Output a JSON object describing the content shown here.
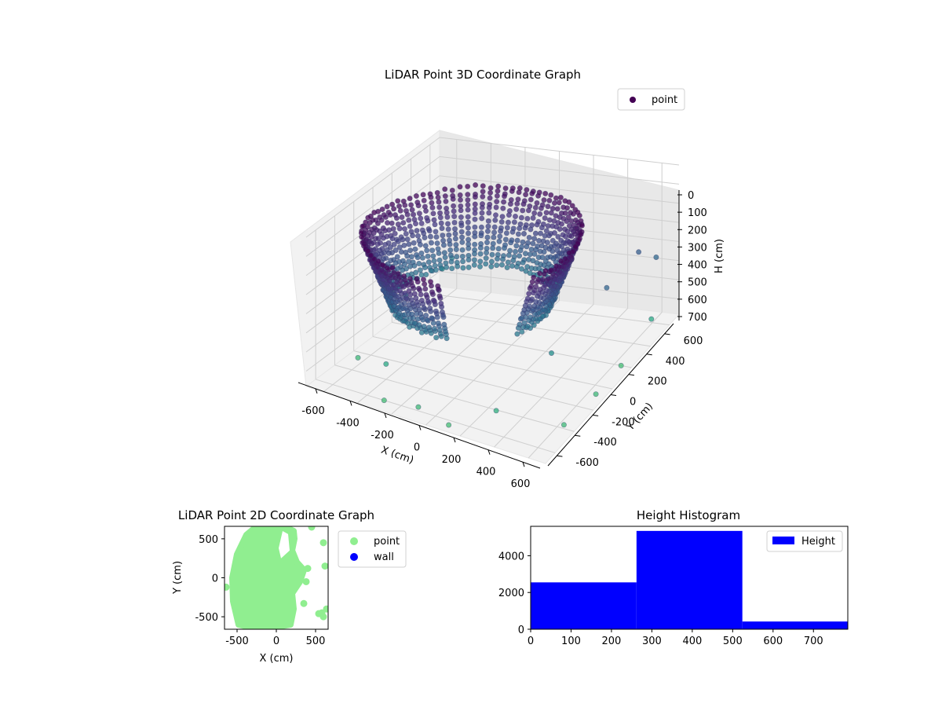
{
  "chart_data": [
    {
      "type": "scatter",
      "projection": "3d",
      "title": "LiDAR Point 3D Coordinate Graph",
      "xlabel": "X (cm)",
      "ylabel": "Y (cm)",
      "zlabel": "H (cm)",
      "xlim": [
        -700,
        700
      ],
      "ylim": [
        -700,
        700
      ],
      "zlim": [
        780,
        0
      ],
      "x_ticks": [
        -600,
        -400,
        -200,
        0,
        200,
        400,
        600
      ],
      "y_ticks": [
        -600,
        -400,
        -200,
        0,
        200,
        400,
        600
      ],
      "z_ticks": [
        0,
        100,
        200,
        300,
        400,
        500,
        600,
        700
      ],
      "z_inverted": true,
      "grid": true,
      "legend": {
        "placement": "top-right",
        "entries": [
          {
            "name": "point",
            "color": "#440154"
          }
        ]
      },
      "colormap": "viridis",
      "series": [
        {
          "name": "point",
          "description_shape": "dense bowl of points, radius ~600 cm around origin, heights ~150-500 cm, plus sparse outliers",
          "ring_radius_cm": 600,
          "height_range_cm": [
            150,
            500
          ],
          "sample_points": [
            {
              "x": -640,
              "y": 620,
              "h": 650
            },
            {
              "x": -550,
              "y": 560,
              "h": 560
            },
            {
              "x": -520,
              "y": 300,
              "h": 520
            },
            {
              "x": -480,
              "y": -50,
              "h": 500
            },
            {
              "x": -620,
              "y": -300,
              "h": 760
            },
            {
              "x": -400,
              "y": -400,
              "h": 700
            },
            {
              "x": -300,
              "y": -600,
              "h": 780
            },
            {
              "x": -100,
              "y": -600,
              "h": 760
            },
            {
              "x": 100,
              "y": -640,
              "h": 780
            },
            {
              "x": 300,
              "y": -500,
              "h": 720
            },
            {
              "x": 400,
              "y": -100,
              "h": 600
            },
            {
              "x": 500,
              "y": 300,
              "h": 450
            },
            {
              "x": 520,
              "y": 600,
              "h": 420
            },
            {
              "x": 600,
              "y": 640,
              "h": 460
            },
            {
              "x": 650,
              "y": 500,
              "h": 700
            },
            {
              "x": 640,
              "y": 200,
              "h": 780
            },
            {
              "x": 660,
              "y": -100,
              "h": 760
            },
            {
              "x": 640,
              "y": -400,
              "h": 760
            }
          ]
        }
      ]
    },
    {
      "type": "scatter",
      "title": "LiDAR Point 2D Coordinate Graph",
      "xlabel": "X (cm)",
      "ylabel": "Y (cm)",
      "xlim": [
        -660,
        660
      ],
      "ylim": [
        -660,
        660
      ],
      "x_ticks": [
        -500,
        0,
        500
      ],
      "y_ticks": [
        -500,
        0,
        500
      ],
      "legend": {
        "placement": "outside-right",
        "entries": [
          {
            "name": "point",
            "color": "#90ee90"
          },
          {
            "name": "wall",
            "color": "#0000ff"
          }
        ]
      },
      "series": [
        {
          "name": "point",
          "color": "#90ee90",
          "outline": [
            [
              -480,
              -600
            ],
            [
              -550,
              -300
            ],
            [
              -560,
              0
            ],
            [
              -500,
              300
            ],
            [
              -380,
              550
            ],
            [
              -250,
              660
            ],
            [
              100,
              660
            ],
            [
              220,
              600
            ],
            [
              230,
              500
            ],
            [
              200,
              350
            ],
            [
              260,
              200
            ],
            [
              350,
              100
            ],
            [
              300,
              -50
            ],
            [
              200,
              -200
            ],
            [
              220,
              -400
            ],
            [
              180,
              -600
            ],
            [
              -50,
              -640
            ],
            [
              -300,
              -640
            ]
          ],
          "scattered": [
            {
              "x": 450,
              "y": 650
            },
            {
              "x": 600,
              "y": 450
            },
            {
              "x": 620,
              "y": 150
            },
            {
              "x": 540,
              "y": -460
            },
            {
              "x": 600,
              "y": -500
            },
            {
              "x": 640,
              "y": -400
            },
            {
              "x": 580,
              "y": -450
            },
            {
              "x": -640,
              "y": -120
            },
            {
              "x": 350,
              "y": -330
            },
            {
              "x": 400,
              "y": 120
            },
            {
              "x": 380,
              "y": -50
            }
          ]
        },
        {
          "name": "wall",
          "color": "#0000ff",
          "points": []
        }
      ]
    },
    {
      "type": "bar",
      "title": "Height Histogram",
      "xlim": [
        0,
        785
      ],
      "ylim": [
        0,
        5600
      ],
      "x_ticks": [
        0,
        100,
        200,
        300,
        400,
        500,
        600,
        700
      ],
      "y_ticks": [
        0,
        2000,
        4000
      ],
      "legend": {
        "placement": "top-right",
        "entries": [
          {
            "name": "Height",
            "color": "#0000ff"
          }
        ]
      },
      "series": [
        {
          "name": "Height",
          "color": "#0000ff",
          "bins": [
            {
              "from": 0,
              "to": 262,
              "value": 2550
            },
            {
              "from": 262,
              "to": 524,
              "value": 5350
            },
            {
              "from": 524,
              "to": 785,
              "value": 420
            }
          ]
        }
      ]
    }
  ]
}
